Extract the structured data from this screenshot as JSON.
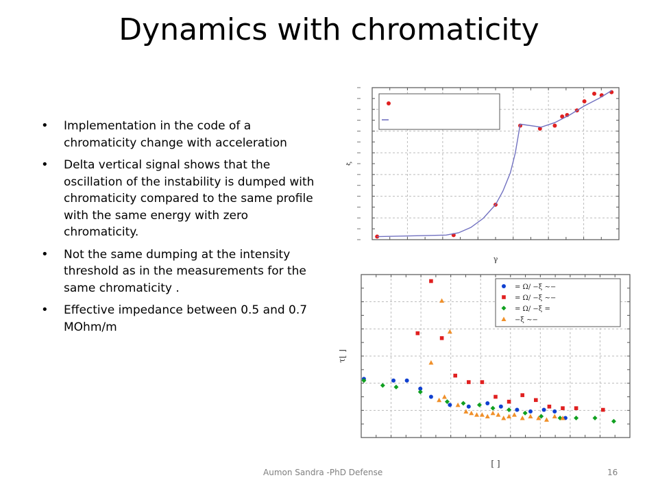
{
  "slide": {
    "title": "Dynamics with chromaticity",
    "bullets": [
      "Implementation in the code of a chromaticity change with acceleration",
      "Delta vertical signal shows that the oscillation of the instability is dumped with chromaticity compared to the same profile with the same energy with zero chromaticity.",
      "Not the same dumping at the intensity threshold as in the measurements for the same chromaticity .",
      "Effective impedance between 0.5 and 0.7 MOhm/m"
    ],
    "footer": "Aumon Sandra -PhD Defense",
    "page_number": "16"
  },
  "chart_data": [
    {
      "type": "scatter",
      "xlabel": "γ",
      "ylabel": "ξ",
      "xlim": [
        0,
        10
      ],
      "ylim": [
        0,
        10
      ],
      "grid": true,
      "legend_position": "top-left",
      "series": [
        {
          "color": "#e02020",
          "marker": "circle",
          "x": [
            0.2,
            3.3,
            5.0,
            6.0,
            6.8,
            7.4,
            7.7,
            7.9,
            8.3,
            8.6,
            9.0,
            9.3,
            9.7
          ],
          "y": [
            0.2,
            0.3,
            2.3,
            7.5,
            7.3,
            7.5,
            8.1,
            8.2,
            8.5,
            9.1,
            9.6,
            9.5,
            9.7
          ]
        },
        {
          "color": "#7070c0",
          "marker": "line",
          "x": [
            0.2,
            3.0,
            3.5,
            4.0,
            4.5,
            5.0,
            5.3,
            5.6,
            5.8,
            6.0,
            6.85,
            7.4,
            8.0,
            8.6,
            9.2,
            9.7
          ],
          "y": [
            0.2,
            0.3,
            0.45,
            0.8,
            1.4,
            2.3,
            3.2,
            4.4,
            5.7,
            7.6,
            7.4,
            7.7,
            8.2,
            8.8,
            9.3,
            9.8
          ]
        }
      ]
    },
    {
      "type": "scatter",
      "xlabel": "[ ]",
      "ylabel": "τ[ ]",
      "xlim": [
        0,
        10
      ],
      "ylim": [
        0,
        10
      ],
      "grid": true,
      "legend_position": "top-right",
      "legend": [
        "= Ω/ −ξ ∼−",
        "= Ω/ −ξ ∼−",
        "= Ω/ −ξ =",
        "−ξ ∼−"
      ],
      "series": [
        {
          "color": "#1040d0",
          "marker": "circle",
          "x": [
            0.1,
            1.2,
            1.7,
            2.2,
            2.6,
            3.3,
            4.0,
            4.7,
            5.2,
            5.8,
            6.3,
            6.8,
            7.2,
            7.6
          ],
          "y": [
            3.6,
            3.5,
            3.5,
            3.0,
            2.5,
            2.0,
            1.9,
            2.1,
            1.9,
            1.7,
            1.6,
            1.7,
            1.6,
            1.2
          ]
        },
        {
          "color": "#e02020",
          "marker": "square",
          "x": [
            2.6,
            2.1,
            3.0,
            3.5,
            4.0,
            4.5,
            5.0,
            5.5,
            6.0,
            6.5,
            7.0,
            7.5,
            8.0,
            9.0
          ],
          "y": [
            9.6,
            6.4,
            6.1,
            3.8,
            3.4,
            3.4,
            2.5,
            2.2,
            2.6,
            2.3,
            1.9,
            1.8,
            1.8,
            1.7
          ]
        },
        {
          "color": "#10a020",
          "marker": "diamond",
          "x": [
            0.1,
            0.8,
            1.3,
            2.2,
            3.2,
            3.8,
            4.4,
            4.9,
            5.5,
            6.1,
            6.7,
            7.4,
            8.0,
            8.7,
            9.4
          ],
          "y": [
            3.5,
            3.2,
            3.1,
            2.8,
            2.2,
            2.1,
            2.0,
            1.8,
            1.7,
            1.5,
            1.3,
            1.2,
            1.2,
            1.2,
            1.0
          ]
        },
        {
          "color": "#f0902a",
          "marker": "triangle",
          "x": [
            3.0,
            2.6,
            3.1,
            3.6,
            3.9,
            4.1,
            4.3,
            4.5,
            4.7,
            4.9,
            5.1,
            5.3,
            5.5,
            5.7,
            6.0,
            6.3,
            6.6,
            6.9,
            7.2,
            7.5,
            3.3,
            2.9
          ],
          "y": [
            8.4,
            4.6,
            2.5,
            2.0,
            1.6,
            1.5,
            1.4,
            1.4,
            1.3,
            1.5,
            1.4,
            1.2,
            1.3,
            1.4,
            1.2,
            1.3,
            1.2,
            1.1,
            1.3,
            1.2,
            6.5,
            2.3
          ]
        }
      ]
    }
  ]
}
